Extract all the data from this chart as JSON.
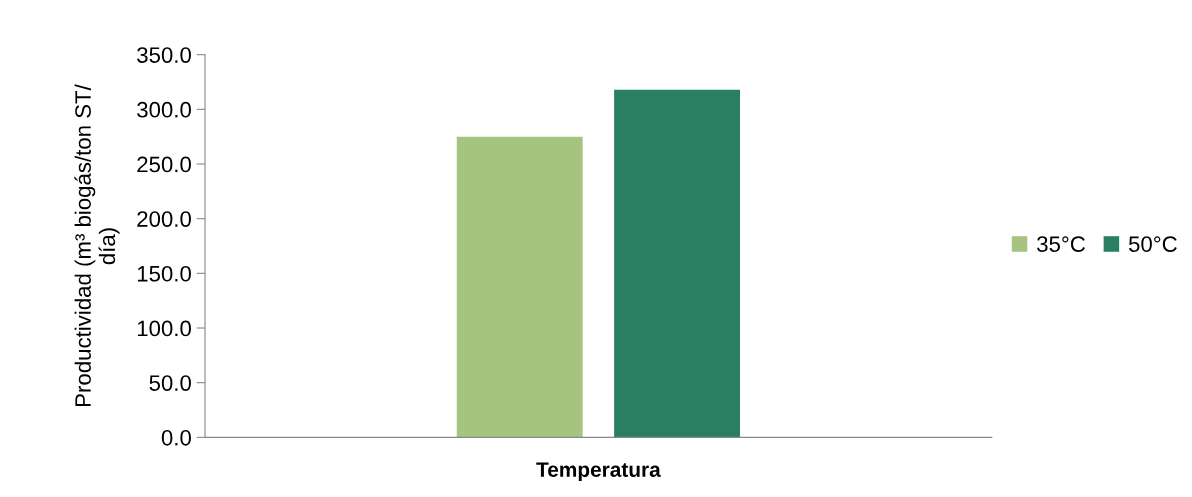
{
  "chart_data": {
    "type": "bar",
    "categories": [
      null
    ],
    "xlabel": "Temperatura",
    "ylabel": "Productividad (m³ biogás/ton ST/\ndía)",
    "series": [
      {
        "name": "35°C",
        "color": "#a5c47f",
        "values": [
          275
        ]
      },
      {
        "name": "50°C",
        "color": "#2a7f62",
        "values": [
          318
        ]
      }
    ],
    "ylim": [
      0,
      350
    ],
    "yticks": [
      {
        "value": 0,
        "label": "0.0"
      },
      {
        "value": 50,
        "label": "50.0"
      },
      {
        "value": 100,
        "label": "100.0"
      },
      {
        "value": 150,
        "label": "150.0"
      },
      {
        "value": 200,
        "label": "200.0"
      },
      {
        "value": 250,
        "label": "250.0"
      },
      {
        "value": 300,
        "label": "300.0"
      },
      {
        "value": 350,
        "label": "350.0"
      }
    ],
    "grid": false,
    "legend": "right"
  }
}
